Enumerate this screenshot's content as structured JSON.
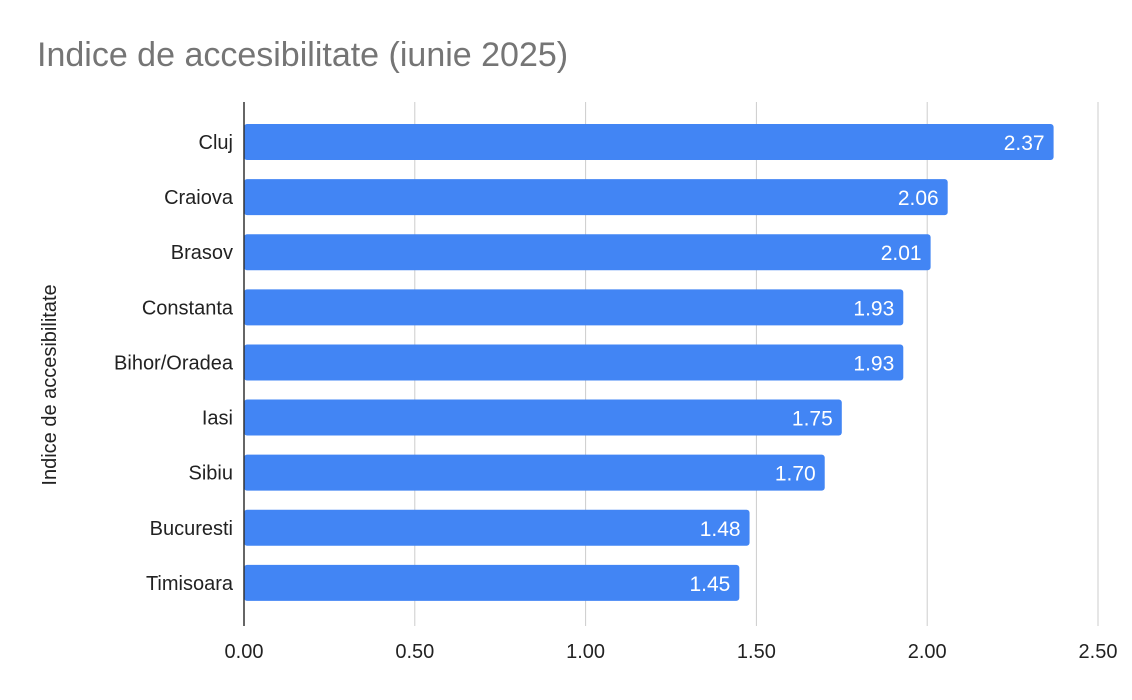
{
  "chart_data": {
    "type": "bar",
    "orientation": "horizontal",
    "title": "Indice de accesibilitate (iunie 2025)",
    "ylabel": "Indice de accesibilitate",
    "xlabel": "",
    "categories": [
      "Cluj",
      "Craiova",
      "Brasov",
      "Constanta",
      "Bihor/Oradea",
      "Iasi",
      "Sibiu",
      "Bucuresti",
      "Timisoara"
    ],
    "values": [
      2.37,
      2.06,
      2.01,
      1.93,
      1.93,
      1.75,
      1.7,
      1.48,
      1.45
    ],
    "data_labels": [
      "2.37",
      "2.06",
      "2.01",
      "1.93",
      "1.93",
      "1.75",
      "1.70",
      "1.48",
      "1.45"
    ],
    "xlim": [
      0,
      2.5
    ],
    "x_ticks": [
      0,
      0.5,
      1.0,
      1.5,
      2.0,
      2.5
    ],
    "x_tick_labels": [
      "0.00",
      "0.50",
      "1.00",
      "1.50",
      "2.00",
      "2.50"
    ],
    "grid": true,
    "legend": "none",
    "bar_color": "#4285f4"
  }
}
